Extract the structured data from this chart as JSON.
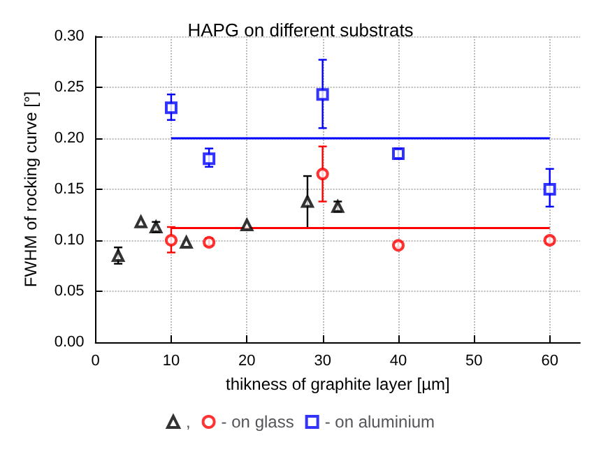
{
  "chart_data": {
    "type": "scatter",
    "title": "HAPG on different substrats",
    "xlabel": "thikness of graphite layer [µm]",
    "ylabel": "FWHM of rocking curve [°]",
    "xlim": [
      0,
      64
    ],
    "xticks": [
      0,
      10,
      20,
      30,
      40,
      50,
      60
    ],
    "ylim": [
      0,
      0.3
    ],
    "yticks": [
      {
        "value": 0,
        "label": "0.00"
      },
      {
        "value": 0.05,
        "label": "0.05"
      },
      {
        "value": 0.1,
        "label": "0.10"
      },
      {
        "value": 0.15,
        "label": "0.15"
      },
      {
        "value": 0.2,
        "label": "0.20"
      },
      {
        "value": 0.25,
        "label": "0.25"
      },
      {
        "value": 0.3,
        "label": "0.30"
      }
    ],
    "grid": true,
    "legend": "bottom",
    "series": [
      {
        "name": ",",
        "color": "#000000",
        "marker": "triangle",
        "x": [
          3,
          6,
          8,
          12,
          20,
          28,
          32
        ],
        "values": [
          0.085,
          0.118,
          0.113,
          0.098,
          0.115,
          0.138,
          0.133
        ],
        "errors": [
          [
            0.077,
            0.093
          ],
          null,
          [
            0.108,
            0.118
          ],
          null,
          null,
          [
            0.112,
            0.163
          ],
          [
            0.128,
            0.138
          ]
        ]
      },
      {
        "name": "- on glass",
        "color": "#ff0000",
        "marker": "circle",
        "x": [
          10,
          15,
          30,
          40,
          60
        ],
        "values": [
          0.1,
          0.098,
          0.165,
          0.095,
          0.1
        ],
        "errors": [
          [
            0.088,
            0.113
          ],
          [
            0.095,
            0.102
          ],
          [
            0.138,
            0.192
          ],
          [
            0.093,
            0.098
          ],
          [
            0.097,
            0.103
          ]
        ]
      },
      {
        "name": "- on aluminium",
        "color": "#0000ff",
        "marker": "square",
        "x": [
          10,
          15,
          30,
          40,
          60
        ],
        "values": [
          0.23,
          0.18,
          0.243,
          0.185,
          0.15
        ],
        "errors": [
          [
            0.218,
            0.243
          ],
          [
            0.172,
            0.19
          ],
          [
            0.21,
            0.277
          ],
          [
            0.18,
            0.19
          ],
          [
            0.133,
            0.17
          ]
        ]
      },
      {
        "type": "line",
        "color": "#ff0000",
        "marker": "none",
        "x": [
          10,
          60
        ],
        "values": [
          0.112,
          0.112
        ]
      },
      {
        "type": "line",
        "color": "#0000ff",
        "marker": "none",
        "x": [
          10,
          60
        ],
        "values": [
          0.2,
          0.2
        ]
      }
    ]
  }
}
